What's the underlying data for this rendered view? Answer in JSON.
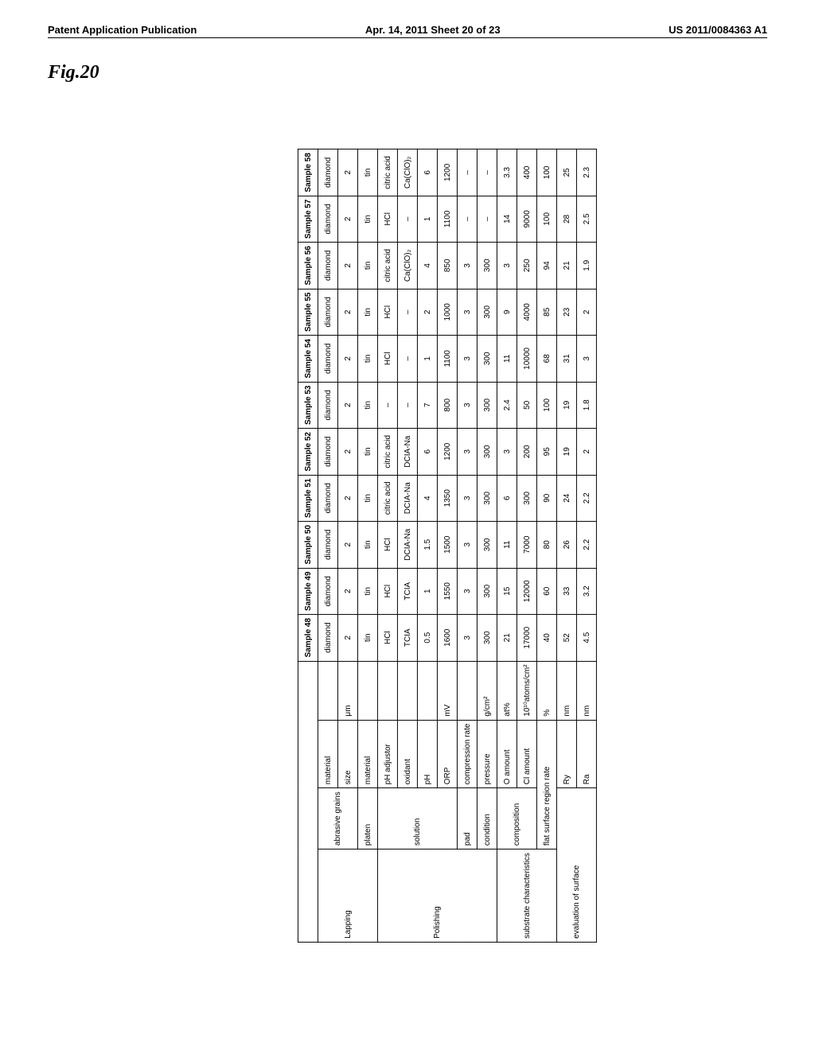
{
  "header": {
    "left": "Patent Application Publication",
    "center": "Apr. 14, 2011  Sheet 20 of 23",
    "right": "US 2011/0084363 A1"
  },
  "figure_label": "Fig.20",
  "table": {
    "sample_labels": [
      "Sample 48",
      "Sample 49",
      "Sample 50",
      "Sample 51",
      "Sample 52",
      "Sample 53",
      "Sample 54",
      "Sample 55",
      "Sample 56",
      "Sample 57",
      "Sample 58"
    ],
    "group_labels": {
      "lapping": "Lapping",
      "polishing": "Polishing",
      "substrate": "substrate characteristics",
      "evaluation": "evaluation of surface"
    },
    "sub_labels": {
      "abrasive_grains": "abrasive grains",
      "platen": "platen",
      "solution": "solution",
      "pad": "pad",
      "condition": "condition",
      "composition": "composition"
    },
    "rows": [
      {
        "param": "material",
        "unit": "",
        "vals": [
          "diamond",
          "diamond",
          "diamond",
          "diamond",
          "diamond",
          "diamond",
          "diamond",
          "diamond",
          "diamond",
          "diamond",
          "diamond"
        ]
      },
      {
        "param": "size",
        "unit": "μm",
        "vals": [
          "2",
          "2",
          "2",
          "2",
          "2",
          "2",
          "2",
          "2",
          "2",
          "2",
          "2"
        ]
      },
      {
        "param": "material",
        "unit": "",
        "vals": [
          "tin",
          "tin",
          "tin",
          "tin",
          "tin",
          "tin",
          "tin",
          "tin",
          "tin",
          "tin",
          "tin"
        ]
      },
      {
        "param": "pH adjustor",
        "unit": "",
        "vals": [
          "HCl",
          "HCl",
          "HCl",
          "citric acid",
          "citric acid",
          "–",
          "HCl",
          "HCl",
          "citric acid",
          "HCl",
          "citric acid"
        ]
      },
      {
        "param": "oxidant",
        "unit": "",
        "vals": [
          "TCIA",
          "TCIA",
          "DCIA-Na",
          "DCIA-Na",
          "DCIA-Na",
          "–",
          "–",
          "–",
          "Ca(ClO)₂",
          "–",
          "Ca(ClO)₂"
        ]
      },
      {
        "param": "pH",
        "unit": "",
        "vals": [
          "0.5",
          "1",
          "1.5",
          "4",
          "6",
          "7",
          "1",
          "2",
          "4",
          "1",
          "6"
        ]
      },
      {
        "param": "ORP",
        "unit": "mV",
        "vals": [
          "1600",
          "1550",
          "1500",
          "1350",
          "1200",
          "800",
          "1100",
          "1000",
          "850",
          "1100",
          "1200"
        ]
      },
      {
        "param": "compression rate",
        "unit": "",
        "vals": [
          "3",
          "3",
          "3",
          "3",
          "3",
          "3",
          "3",
          "3",
          "3",
          "–",
          "–"
        ]
      },
      {
        "param": "pressure",
        "unit": "g/cm²",
        "vals": [
          "300",
          "300",
          "300",
          "300",
          "300",
          "300",
          "300",
          "300",
          "300",
          "–",
          "–"
        ]
      },
      {
        "param": "O amount",
        "unit": "at%",
        "vals": [
          "21",
          "15",
          "11",
          "6",
          "3",
          "2.4",
          "11",
          "9",
          "3",
          "14",
          "3.3"
        ]
      },
      {
        "param": "Cl amount",
        "unit": "10¹⁰atoms/cm²",
        "vals": [
          "17000",
          "12000",
          "7000",
          "300",
          "200",
          "50",
          "10000",
          "4000",
          "250",
          "9000",
          "400"
        ]
      },
      {
        "param": "flat surface region rate",
        "unit": "%",
        "vals": [
          "40",
          "60",
          "80",
          "90",
          "95",
          "100",
          "68",
          "85",
          "94",
          "100",
          "100"
        ]
      },
      {
        "param": "Ry",
        "unit": "nm",
        "vals": [
          "52",
          "33",
          "26",
          "24",
          "19",
          "19",
          "31",
          "23",
          "21",
          "28",
          "25"
        ]
      },
      {
        "param": "Ra",
        "unit": "nm",
        "vals": [
          "4.5",
          "3.2",
          "2.2",
          "2.2",
          "2",
          "1.8",
          "3",
          "2",
          "1.9",
          "2.5",
          "2.3"
        ]
      }
    ],
    "colors": {
      "border": "#000000",
      "background": "#ffffff",
      "text": "#000000"
    },
    "fonts": {
      "body_size_pt": 8,
      "header_size_pt": 10,
      "fig_label_size_pt": 18
    }
  }
}
